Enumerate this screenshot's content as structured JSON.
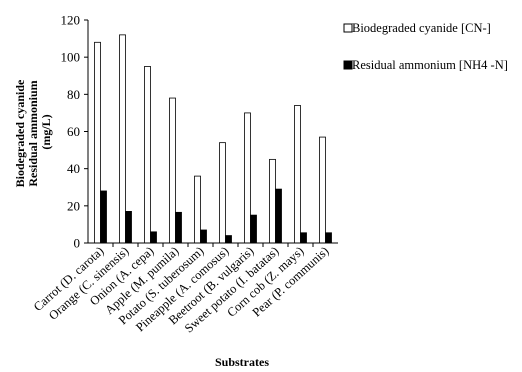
{
  "chart_data": {
    "type": "bar",
    "categories": [
      "Carrot (D. carota)",
      "Orange (C. sinensis)",
      "Onion (A. cepa)",
      "Apple (M. pumila)",
      "Potato (S. tuberosum)",
      "Pineapple (A. comosus)",
      "Beetroot (B. vulgaris)",
      "Sweet potato (I. batatas)",
      "Corn cob (Z. mays)",
      "Pear (P. communis)"
    ],
    "series": [
      {
        "name": "Biodegraded cyanide [CN-]",
        "color": "#ffffff",
        "values": [
          108,
          112,
          95,
          78,
          36,
          54,
          70,
          45,
          74,
          57
        ]
      },
      {
        "name": "Residual ammonium [NH4 -N]",
        "color": "#000000",
        "values": [
          28,
          17,
          6,
          16.5,
          7,
          4,
          15,
          29,
          5.5,
          5.5
        ]
      }
    ],
    "xlabel": "Substrates",
    "ylabel_lines": [
      "Biodegraded cyanide",
      "Residual ammonium",
      "(mg/L)"
    ],
    "ylim": [
      0,
      120
    ],
    "yticks": [
      "0",
      "20",
      "40",
      "60",
      "80",
      "100",
      "120"
    ],
    "grid": false,
    "legend": "right"
  }
}
